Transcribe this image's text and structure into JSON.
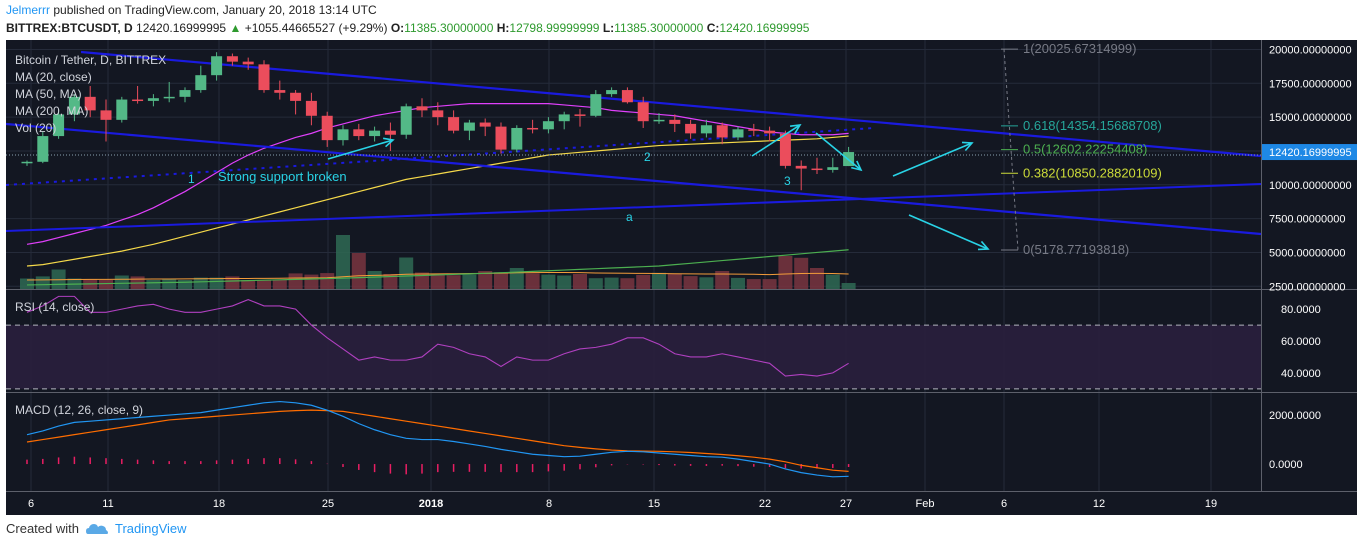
{
  "header": {
    "user": "Jelmerrr",
    "published": "published on TradingView.com, January 20, 2018 13:14 UTC",
    "symbol": "BITTREX:BTCUSDT, D",
    "price": "12420.16999995",
    "change": "+1055.44665527 (+9.29%)",
    "o_label": "O:",
    "o": "11385.30000000",
    "h_label": "H:",
    "h": "12798.99999999",
    "l_label": "L:",
    "l": "11385.30000000",
    "c_label": "C:",
    "c": "12420.16999995"
  },
  "legend": {
    "title": "Bitcoin / Tether, D, BITTREX",
    "ma20": "MA (20, close)",
    "ma50": "MA (50, MA)",
    "ma200": "MA (200, MA)",
    "vol": "Vol (20)",
    "rsi": "RSI (14, close)",
    "macd": "MACD (12, 26, close, 9)"
  },
  "annotations": {
    "n1": "1",
    "support": "Strong support broken",
    "n2": "2",
    "n3": "3",
    "a": "a"
  },
  "fib": {
    "l1": "1(20025.67314999)",
    "l618": "0.618(14354.15688708)",
    "l5": "0.5(12602.22254408)",
    "l382": "0.382(10850.28820109)",
    "l0": "0(5178.77193818)"
  },
  "price_axis": [
    "20000.00000000",
    "17500.00000000",
    "15000.00000000",
    "12420.16999995",
    "10000.00000000",
    "7500.00000000",
    "5000.00000000",
    "2500.00000000"
  ],
  "rsi_axis": [
    "80.0000",
    "60.0000",
    "40.0000"
  ],
  "macd_axis": [
    "2000.0000",
    "0.0000"
  ],
  "x_axis": [
    "6",
    "11",
    "18",
    "25",
    "2018",
    "8",
    "15",
    "22",
    "27",
    "Feb",
    "6",
    "12",
    "19"
  ],
  "footer": {
    "created": "Created with",
    "brand": "TradingView"
  },
  "colors": {
    "background": "#131722",
    "grid": "#252b3a",
    "up": "#53b987",
    "down": "#eb4d5c",
    "trend": "#1a1adf",
    "ma20": "#e040fb",
    "ma50": "#f5d94a",
    "ma200": "#4caf50",
    "cyan": "#29d3e6",
    "rsi": "#b040c0",
    "macd": "#2196f3",
    "signal": "#ff6d00"
  },
  "chart_data": {
    "type": "candlestick",
    "start_date": "2017-12-05",
    "ohlc": [
      [
        11600,
        11800,
        11400,
        11700
      ],
      [
        11700,
        13900,
        11600,
        13600
      ],
      [
        13600,
        15600,
        13400,
        15200
      ],
      [
        15200,
        16700,
        14700,
        16500
      ],
      [
        16500,
        17300,
        15000,
        15500
      ],
      [
        15500,
        16300,
        13200,
        14800
      ],
      [
        14800,
        16500,
        14600,
        16300
      ],
      [
        16300,
        17300,
        16000,
        16200
      ],
      [
        16200,
        16700,
        15800,
        16400
      ],
      [
        16400,
        17600,
        16100,
        16500
      ],
      [
        16500,
        17200,
        16100,
        17000
      ],
      [
        17000,
        18800,
        16800,
        18100
      ],
      [
        18100,
        19800,
        17700,
        19500
      ],
      [
        19500,
        19700,
        18800,
        19100
      ],
      [
        19100,
        19400,
        18500,
        18900
      ],
      [
        18900,
        19200,
        16800,
        17000
      ],
      [
        17000,
        17700,
        16300,
        16800
      ],
      [
        16800,
        17000,
        15200,
        16200
      ],
      [
        16200,
        16800,
        14400,
        15100
      ],
      [
        15100,
        15400,
        12800,
        13300
      ],
      [
        13300,
        14400,
        12900,
        14100
      ],
      [
        14100,
        14500,
        13300,
        13600
      ],
      [
        13600,
        14300,
        13200,
        14000
      ],
      [
        14000,
        14600,
        12500,
        13700
      ],
      [
        13700,
        16000,
        13400,
        15800
      ],
      [
        15800,
        16400,
        15000,
        15500
      ],
      [
        15500,
        16100,
        14400,
        15000
      ],
      [
        15000,
        15500,
        13800,
        14000
      ],
      [
        14000,
        14800,
        13300,
        14600
      ],
      [
        14600,
        14900,
        13600,
        14300
      ],
      [
        14300,
        14600,
        12300,
        12600
      ],
      [
        12600,
        14400,
        12400,
        14200
      ],
      [
        14200,
        14800,
        13800,
        14100
      ],
      [
        14100,
        15000,
        13800,
        14700
      ],
      [
        14700,
        15400,
        14100,
        15200
      ],
      [
        15200,
        15600,
        14300,
        15100
      ],
      [
        15100,
        17000,
        15000,
        16700
      ],
      [
        16700,
        17200,
        16500,
        17000
      ],
      [
        17000,
        17200,
        16000,
        16100
      ],
      [
        16100,
        16500,
        14200,
        14700
      ],
      [
        14700,
        15300,
        14500,
        14800
      ],
      [
        14800,
        15200,
        13900,
        14500
      ],
      [
        14500,
        14800,
        13400,
        13800
      ],
      [
        13800,
        14800,
        13500,
        14400
      ],
      [
        14400,
        14600,
        13000,
        13500
      ],
      [
        13500,
        14300,
        13300,
        14100
      ],
      [
        14100,
        14500,
        13600,
        14000
      ],
      [
        14000,
        14300,
        13200,
        13800
      ],
      [
        13800,
        14000,
        11200,
        11400
      ],
      [
        11400,
        11800,
        9600,
        11200
      ],
      [
        11200,
        12000,
        10800,
        11100
      ],
      [
        11100,
        12000,
        10900,
        11300
      ],
      [
        11385,
        12799,
        11385,
        12420
      ]
    ],
    "volume": [
      350,
      420,
      650,
      350,
      330,
      300,
      450,
      420,
      300,
      330,
      300,
      380,
      380,
      420,
      300,
      300,
      300,
      520,
      480,
      530,
      1800,
      1200,
      600,
      500,
      1050,
      550,
      500,
      460,
      480,
      600,
      560,
      700,
      520,
      480,
      450,
      500,
      360,
      380,
      360,
      470,
      540,
      500,
      430,
      390,
      600,
      370,
      330,
      330,
      1100,
      1040,
      700,
      480,
      200
    ],
    "vol_ma": [
      300,
      305,
      310,
      315,
      320,
      322,
      325,
      330,
      332,
      335,
      338,
      340,
      345,
      350,
      352,
      355,
      358,
      365,
      370,
      375,
      410,
      440,
      455,
      465,
      490,
      500,
      505,
      510,
      515,
      520,
      525,
      540,
      545,
      550,
      548,
      545,
      535,
      530,
      525,
      520,
      515,
      510,
      505,
      500,
      498,
      495,
      490,
      480,
      500,
      515,
      520,
      515,
      500
    ],
    "ma20": [
      5600,
      5800,
      6100,
      6400,
      6700,
      7000,
      7400,
      7800,
      8300,
      8900,
      9500,
      10200,
      10900,
      11600,
      12200,
      12700,
      13100,
      13500,
      13800,
      14200,
      14500,
      14800,
      15100,
      15300,
      15500,
      15700,
      15800,
      15900,
      16000,
      16000,
      16000,
      16000,
      16000,
      16000,
      15900,
      15800,
      15700,
      15500,
      15400,
      15300,
      15200,
      15100,
      14900,
      14700,
      14500,
      14300,
      14100,
      13900,
      13800,
      13700,
      13700,
      13700,
      13800
    ],
    "ma50": [
      4000,
      4100,
      4300,
      4500,
      4700,
      4900,
      5100,
      5350,
      5600,
      5900,
      6200,
      6500,
      6800,
      7100,
      7400,
      7700,
      8000,
      8300,
      8600,
      8900,
      9200,
      9500,
      9800,
      10100,
      10400,
      10600,
      10800,
      11000,
      11200,
      11400,
      11600,
      11800,
      12000,
      12200,
      12300,
      12400,
      12500,
      12600,
      12700,
      12800,
      12900,
      12950,
      13000,
      13050,
      13100,
      13150,
      13200,
      13250,
      13300,
      13350,
      13400,
      13500,
      13600
    ],
    "ma200": [
      2600,
      2620,
      2640,
      2660,
      2680,
      2700,
      2720,
      2740,
      2760,
      2780,
      2800,
      2830,
      2860,
      2890,
      2920,
      2950,
      2980,
      3010,
      3040,
      3070,
      3100,
      3140,
      3180,
      3220,
      3260,
      3300,
      3340,
      3380,
      3420,
      3460,
      3500,
      3550,
      3600,
      3650,
      3700,
      3750,
      3800,
      3850,
      3900,
      3950,
      4000,
      4100,
      4200,
      4300,
      4400,
      4500,
      4600,
      4700,
      4800,
      4900,
      5000,
      5100,
      5200
    ],
    "rsi": [
      78,
      82,
      88,
      88,
      78,
      78,
      80,
      82,
      83,
      80,
      78,
      78,
      80,
      82,
      86,
      82,
      82,
      80,
      70,
      62,
      55,
      48,
      50,
      48,
      48,
      50,
      58,
      56,
      52,
      50,
      44,
      50,
      48,
      48,
      52,
      55,
      56,
      58,
      62,
      62,
      58,
      52,
      50,
      50,
      52,
      50,
      48,
      46,
      38,
      39,
      38,
      40,
      46
    ],
    "macd": [
      1200,
      1350,
      1550,
      1700,
      1750,
      1800,
      1850,
      1900,
      1950,
      2000,
      2050,
      2100,
      2200,
      2300,
      2400,
      2500,
      2550,
      2500,
      2400,
      2200,
      1950,
      1650,
      1400,
      1200,
      1050,
      1000,
      1000,
      920,
      820,
      720,
      600,
      500,
      400,
      350,
      300,
      320,
      400,
      480,
      520,
      500,
      450,
      400,
      350,
      300,
      280,
      200,
      100,
      0,
      -200,
      -350,
      -450,
      -520,
      -500
    ],
    "signal": [
      900,
      1000,
      1100,
      1200,
      1300,
      1400,
      1500,
      1600,
      1700,
      1800,
      1850,
      1900,
      1950,
      2000,
      2050,
      2100,
      2150,
      2180,
      2200,
      2180,
      2150,
      2050,
      1950,
      1850,
      1750,
      1650,
      1550,
      1450,
      1350,
      1250,
      1150,
      1050,
      950,
      850,
      750,
      680,
      620,
      570,
      540,
      530,
      520,
      500,
      470,
      430,
      390,
      340,
      280,
      200,
      90,
      -50,
      -150,
      -250,
      -300
    ],
    "fib_levels": [
      {
        "ratio": 1,
        "price": 20025.67314999
      },
      {
        "ratio": 0.618,
        "price": 14354.15688708
      },
      {
        "ratio": 0.5,
        "price": 12602.22254408
      },
      {
        "ratio": 0.382,
        "price": 10850.28820109
      },
      {
        "ratio": 0,
        "price": 5178.77193818
      }
    ],
    "ylim": [
      2300,
      20700
    ],
    "rsi_ylim": [
      28,
      92
    ],
    "macd_ylim": [
      -1100,
      2900
    ]
  }
}
